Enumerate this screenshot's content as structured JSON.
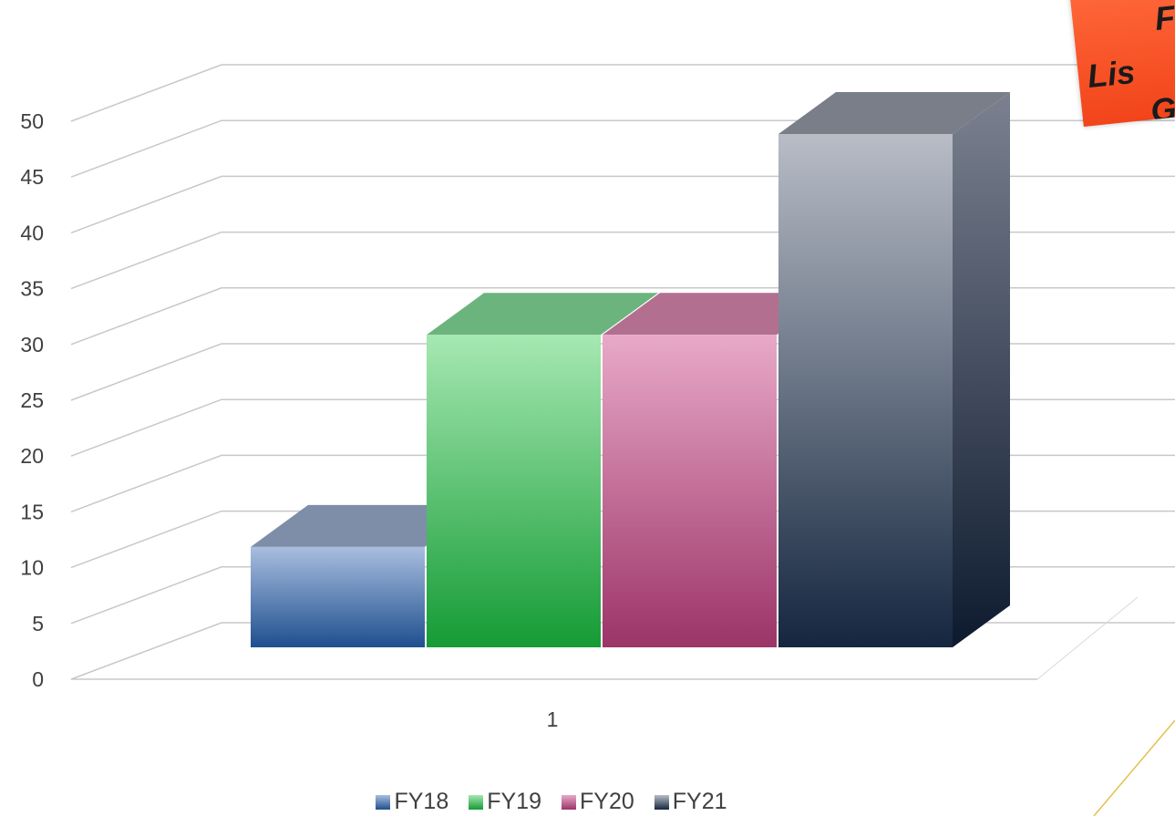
{
  "chart_data": {
    "type": "bar",
    "categories": [
      "1"
    ],
    "series": [
      {
        "name": "FY18",
        "values": [
          9
        ]
      },
      {
        "name": "FY19",
        "values": [
          28
        ]
      },
      {
        "name": "FY20",
        "values": [
          28
        ]
      },
      {
        "name": "FY21",
        "values": [
          46
        ]
      }
    ],
    "y_ticks": [
      "0",
      "5",
      "10",
      "15",
      "20",
      "25",
      "30",
      "35",
      "40",
      "45",
      "50"
    ],
    "ylim": [
      0,
      50
    ],
    "title": "",
    "xlabel": "",
    "ylabel": "",
    "grid": true,
    "legend_position": "bottom",
    "style": "3d-column",
    "colors": {
      "FY18": "#4a6fa5",
      "FY19": "#3fbf5a",
      "FY20": "#c85a8c",
      "FY21": "#3a4558"
    }
  },
  "sticker": {
    "line1": "F",
    "line2": "Lis",
    "line3": "G"
  }
}
